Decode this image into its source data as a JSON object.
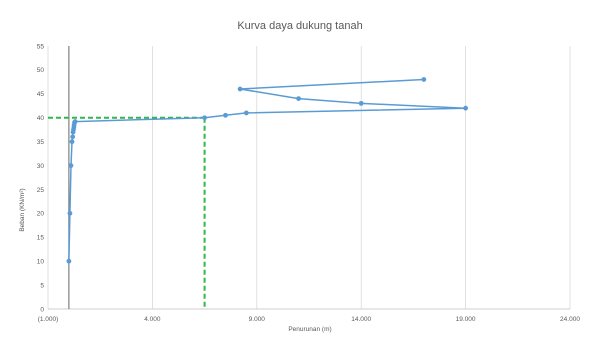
{
  "chart_data": {
    "type": "scatter",
    "title": "Kurva daya dukung tanah",
    "xlabel": "Penurunan (m)",
    "ylabel": "Beban (KN/m²)",
    "xlim": [
      -1,
      24
    ],
    "ylim": [
      0,
      55
    ],
    "x_ticks": [
      -1,
      4,
      9,
      14,
      19,
      24
    ],
    "x_tick_labels": [
      "(1.000)",
      "4.000",
      "9.000",
      "14.000",
      "19.000",
      "24.000"
    ],
    "y_ticks": [
      0,
      5,
      10,
      15,
      20,
      25,
      30,
      35,
      40,
      45,
      50,
      55
    ],
    "y_tick_labels": [
      "0",
      "5",
      "10",
      "15",
      "20",
      "25",
      "30",
      "35",
      "40",
      "45",
      "50",
      "55"
    ],
    "grid": "vertical",
    "series": [
      {
        "color": "#5b9bd5",
        "x": [
          0.0,
          0.05,
          0.1,
          0.15,
          0.18,
          0.2,
          0.22,
          0.24,
          0.25,
          0.27,
          0.3,
          6.5,
          7.5,
          8.5,
          19.0,
          14.0,
          11.0,
          8.2,
          17.0
        ],
        "y": [
          10,
          20,
          30,
          35,
          36,
          37,
          37.5,
          38,
          38.5,
          39,
          39.2,
          40,
          40.5,
          41,
          42,
          43,
          44,
          46,
          48
        ]
      }
    ],
    "reference_lines": {
      "color": "#2db84b",
      "x": 6.5,
      "y": 40
    }
  }
}
